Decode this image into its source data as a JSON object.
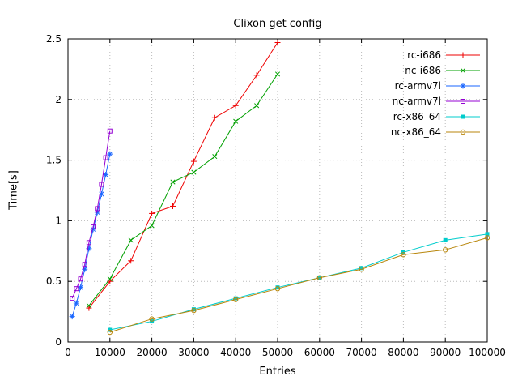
{
  "chart_data": {
    "type": "line",
    "title": "Clixon get config",
    "xlabel": "Entries",
    "ylabel": "Time[s]",
    "xlim": [
      0,
      100000
    ],
    "ylim": [
      0,
      2.5
    ],
    "grid": true,
    "legend_position": "top-right-inside",
    "xtick_values": [
      0,
      10000,
      20000,
      30000,
      40000,
      50000,
      60000,
      70000,
      80000,
      90000,
      100000
    ],
    "xtick_labels": [
      "0",
      "10000",
      "20000",
      "30000",
      "40000",
      "50000",
      "60000",
      "70000",
      "80000",
      "90000",
      "100000"
    ],
    "ytick_values": [
      0,
      0.5,
      1,
      1.5,
      2,
      2.5
    ],
    "ytick_labels": [
      "0",
      "0.5",
      "1",
      "1.5",
      "2",
      "2.5"
    ],
    "series": [
      {
        "name": "rc-i686",
        "color": "#ee0000",
        "marker": "plus",
        "x": [
          5000,
          10000,
          15000,
          20000,
          25000,
          30000,
          35000,
          40000,
          45000,
          50000
        ],
        "y": [
          0.28,
          0.5,
          0.67,
          1.06,
          1.12,
          1.49,
          1.85,
          1.95,
          2.2,
          2.47
        ]
      },
      {
        "name": "nc-i686",
        "color": "#00a000",
        "marker": "cross",
        "x": [
          5000,
          10000,
          15000,
          20000,
          25000,
          30000,
          35000,
          40000,
          45000,
          50000
        ],
        "y": [
          0.3,
          0.52,
          0.84,
          0.96,
          1.32,
          1.4,
          1.53,
          1.82,
          1.95,
          2.21
        ]
      },
      {
        "name": "rc-armv7l",
        "color": "#1a66ff",
        "marker": "asterisk",
        "x": [
          1000,
          2000,
          3000,
          4000,
          5000,
          6000,
          7000,
          8000,
          9000,
          10000
        ],
        "y": [
          0.21,
          0.32,
          0.45,
          0.6,
          0.77,
          0.93,
          1.07,
          1.22,
          1.38,
          1.55
        ]
      },
      {
        "name": "nc-armv7l",
        "color": "#9400d3",
        "marker": "square-open",
        "x": [
          1000,
          2000,
          3000,
          4000,
          5000,
          6000,
          7000,
          8000,
          9000,
          10000
        ],
        "y": [
          0.36,
          0.44,
          0.52,
          0.64,
          0.82,
          0.95,
          1.1,
          1.3,
          1.52,
          1.74
        ]
      },
      {
        "name": "rc-x86_64",
        "color": "#00cccc",
        "marker": "square-filled",
        "x": [
          10000,
          20000,
          30000,
          40000,
          50000,
          60000,
          70000,
          80000,
          90000,
          100000
        ],
        "y": [
          0.1,
          0.17,
          0.27,
          0.36,
          0.45,
          0.53,
          0.61,
          0.74,
          0.84,
          0.89
        ]
      },
      {
        "name": "nc-x86_64",
        "color": "#b8860b",
        "marker": "circle-open",
        "x": [
          10000,
          20000,
          30000,
          40000,
          50000,
          60000,
          70000,
          80000,
          90000,
          100000
        ],
        "y": [
          0.08,
          0.19,
          0.26,
          0.35,
          0.44,
          0.53,
          0.6,
          0.72,
          0.76,
          0.86
        ]
      }
    ]
  }
}
